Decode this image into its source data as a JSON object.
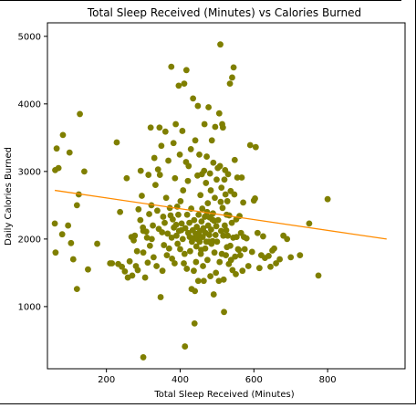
{
  "chart_data": {
    "type": "scatter",
    "title": "Total Sleep Received (Minutes) vs Calories Burned",
    "xlabel": "Total Sleep Received (Minutes)",
    "ylabel": "Daily Calories Burned",
    "xlim": [
      40,
      1010
    ],
    "ylim": [
      80,
      5200
    ],
    "xticks": [
      200,
      400,
      600,
      800
    ],
    "yticks": [
      1000,
      2000,
      3000,
      4000,
      5000
    ],
    "grid": false,
    "colors": {
      "points": "#7f7f00",
      "trend": "#ff8c00",
      "frame": "#000000"
    },
    "trendline": {
      "x": [
        60,
        960
      ],
      "y": [
        2720,
        2000
      ]
    },
    "series": [
      {
        "points": [
          [
            61,
            3020
          ],
          [
            70,
            3050
          ],
          [
            65,
            3340
          ],
          [
            82,
            3540
          ],
          [
            100,
            3280
          ],
          [
            120,
            2500
          ],
          [
            125,
            2660
          ],
          [
            128,
            3850
          ],
          [
            140,
            3000
          ],
          [
            60,
            2230
          ],
          [
            62,
            1800
          ],
          [
            80,
            2070
          ],
          [
            96,
            2200
          ],
          [
            104,
            1940
          ],
          [
            110,
            1700
          ],
          [
            120,
            1260
          ],
          [
            150,
            1550
          ],
          [
            175,
            1930
          ],
          [
            210,
            1640
          ],
          [
            215,
            1640
          ],
          [
            228,
            3430
          ],
          [
            237,
            2400
          ],
          [
            232,
            1630
          ],
          [
            242,
            1590
          ],
          [
            250,
            1520
          ],
          [
            255,
            2900
          ],
          [
            258,
            1430
          ],
          [
            263,
            1670
          ],
          [
            268,
            2030
          ],
          [
            270,
            1460
          ],
          [
            274,
            1980
          ],
          [
            277,
            2050
          ],
          [
            280,
            1600
          ],
          [
            283,
            1820
          ],
          [
            285,
            1540
          ],
          [
            287,
            2440
          ],
          [
            292,
            2280
          ],
          [
            293,
            3010
          ],
          [
            296,
            2640
          ],
          [
            299,
            2170
          ],
          [
            300,
            2120
          ],
          [
            300,
            1800
          ],
          [
            300,
            250
          ],
          [
            305,
            1430
          ],
          [
            308,
            2110
          ],
          [
            310,
            2020
          ],
          [
            312,
            1650
          ],
          [
            314,
            2950
          ],
          [
            316,
            2370
          ],
          [
            318,
            1900
          ],
          [
            320,
            3650
          ],
          [
            322,
            2500
          ],
          [
            323,
            2000
          ],
          [
            326,
            2200
          ],
          [
            328,
            1730
          ],
          [
            330,
            3200
          ],
          [
            333,
            2800
          ],
          [
            336,
            1600
          ],
          [
            338,
            2420
          ],
          [
            340,
            3030
          ],
          [
            342,
            2150
          ],
          [
            344,
            3650
          ],
          [
            345,
            2950
          ],
          [
            347,
            1140
          ],
          [
            349,
            3380
          ],
          [
            351,
            2100
          ],
          [
            352,
            1530
          ],
          [
            354,
            2330
          ],
          [
            356,
            1910
          ],
          [
            358,
            2240
          ],
          [
            360,
            3590
          ],
          [
            362,
            2610
          ],
          [
            364,
            1760
          ],
          [
            366,
            2080
          ],
          [
            368,
            3160
          ],
          [
            370,
            1860
          ],
          [
            372,
            2460
          ],
          [
            374,
            2350
          ],
          [
            376,
            4550
          ],
          [
            377,
            2020
          ],
          [
            378,
            1710
          ],
          [
            380,
            2290
          ],
          [
            382,
            3420
          ],
          [
            383,
            2170
          ],
          [
            385,
            1640
          ],
          [
            386,
            2900
          ],
          [
            388,
            3700
          ],
          [
            389,
            2210
          ],
          [
            390,
            2050
          ],
          [
            392,
            2480
          ],
          [
            393,
            1930
          ],
          [
            395,
            2360
          ],
          [
            396,
            4270
          ],
          [
            397,
            2120
          ],
          [
            399,
            3250
          ],
          [
            400,
            1850
          ],
          [
            401,
            2560
          ],
          [
            403,
            2130
          ],
          [
            404,
            2230
          ],
          [
            406,
            3600
          ],
          [
            407,
            2000
          ],
          [
            408,
            2720
          ],
          [
            410,
            1640
          ],
          [
            411,
            4300
          ],
          [
            412,
            1780
          ],
          [
            413,
            410
          ],
          [
            414,
            2160
          ],
          [
            416,
            3140
          ],
          [
            417,
            4500
          ],
          [
            418,
            1560
          ],
          [
            419,
            2360
          ],
          [
            421,
            2860
          ],
          [
            422,
            2090
          ],
          [
            423,
            3080
          ],
          [
            425,
            2240
          ],
          [
            426,
            2030
          ],
          [
            427,
            1820
          ],
          [
            429,
            3330
          ],
          [
            430,
            2450
          ],
          [
            431,
            1260
          ],
          [
            432,
            1960
          ],
          [
            434,
            2130
          ],
          [
            435,
            4080
          ],
          [
            436,
            2010
          ],
          [
            437,
            1530
          ],
          [
            438,
            2280
          ],
          [
            439,
            750
          ],
          [
            440,
            1230
          ],
          [
            441,
            3460
          ],
          [
            442,
            2080
          ],
          [
            443,
            1660
          ],
          [
            444,
            1890
          ],
          [
            445,
            2180
          ],
          [
            446,
            2000
          ],
          [
            447,
            2940
          ],
          [
            448,
            3970
          ],
          [
            449,
            1380
          ],
          [
            450,
            2360
          ],
          [
            451,
            2060
          ],
          [
            452,
            3250
          ],
          [
            453,
            1960
          ],
          [
            454,
            2120
          ],
          [
            455,
            2650
          ],
          [
            456,
            1780
          ],
          [
            457,
            1840
          ],
          [
            458,
            2260
          ],
          [
            459,
            2960
          ],
          [
            460,
            2450
          ],
          [
            461,
            2030
          ],
          [
            462,
            1600
          ],
          [
            463,
            2160
          ],
          [
            464,
            1380
          ],
          [
            465,
            3010
          ],
          [
            466,
            3700
          ],
          [
            467,
            2330
          ],
          [
            468,
            1860
          ],
          [
            469,
            2090
          ],
          [
            470,
            2830
          ],
          [
            471,
            1960
          ],
          [
            472,
            3220
          ],
          [
            473,
            2400
          ],
          [
            474,
            1690
          ],
          [
            475,
            2530
          ],
          [
            476,
            2200
          ],
          [
            477,
            3950
          ],
          [
            478,
            1960
          ],
          [
            479,
            2060
          ],
          [
            480,
            2320
          ],
          [
            481,
            2970
          ],
          [
            482,
            1450
          ],
          [
            483,
            2720
          ],
          [
            484,
            2140
          ],
          [
            485,
            1930
          ],
          [
            486,
            3460
          ],
          [
            487,
            2290
          ],
          [
            488,
            1970
          ],
          [
            489,
            2380
          ],
          [
            490,
            3130
          ],
          [
            491,
            1180
          ],
          [
            492,
            2270
          ],
          [
            493,
            1800
          ],
          [
            494,
            2610
          ],
          [
            495,
            3660
          ],
          [
            496,
            2060
          ],
          [
            497,
            1500
          ],
          [
            498,
            2190
          ],
          [
            499,
            2880
          ],
          [
            500,
            1960
          ],
          [
            502,
            3050
          ],
          [
            503,
            2280
          ],
          [
            505,
            1380
          ],
          [
            506,
            3860
          ],
          [
            507,
            1660
          ],
          [
            508,
            3080
          ],
          [
            509,
            4880
          ],
          [
            510,
            2550
          ],
          [
            511,
            2120
          ],
          [
            512,
            2760
          ],
          [
            513,
            1780
          ],
          [
            514,
            3700
          ],
          [
            515,
            2460
          ],
          [
            516,
            3650
          ],
          [
            517,
            2050
          ],
          [
            518,
            1400
          ],
          [
            519,
            920
          ],
          [
            520,
            2880
          ],
          [
            521,
            2200
          ],
          [
            522,
            3020
          ],
          [
            523,
            2660
          ],
          [
            524,
            1760
          ],
          [
            525,
            2130
          ],
          [
            526,
            2360
          ],
          [
            527,
            1880
          ],
          [
            528,
            2560
          ],
          [
            529,
            2050
          ],
          [
            530,
            2960
          ],
          [
            532,
            1630
          ],
          [
            533,
            2350
          ],
          [
            535,
            4300
          ],
          [
            536,
            1900
          ],
          [
            537,
            2710
          ],
          [
            538,
            1690
          ],
          [
            540,
            2240
          ],
          [
            541,
            4390
          ],
          [
            542,
            1540
          ],
          [
            544,
            2020
          ],
          [
            545,
            4540
          ],
          [
            547,
            2660
          ],
          [
            548,
            3170
          ],
          [
            549,
            1740
          ],
          [
            551,
            1480
          ],
          [
            552,
            2290
          ],
          [
            553,
            2030
          ],
          [
            555,
            2910
          ],
          [
            557,
            1850
          ],
          [
            559,
            1840
          ],
          [
            561,
            2340
          ],
          [
            563,
            1760
          ],
          [
            565,
            2090
          ],
          [
            567,
            2910
          ],
          [
            569,
            1530
          ],
          [
            571,
            2540
          ],
          [
            573,
            2030
          ],
          [
            575,
            1850
          ],
          [
            580,
            2010
          ],
          [
            585,
            1600
          ],
          [
            590,
            3390
          ],
          [
            595,
            1810
          ],
          [
            600,
            2570
          ],
          [
            603,
            2600
          ],
          [
            605,
            3360
          ],
          [
            610,
            2090
          ],
          [
            615,
            1570
          ],
          [
            620,
            1760
          ],
          [
            625,
            2040
          ],
          [
            630,
            1720
          ],
          [
            640,
            1750
          ],
          [
            645,
            1590
          ],
          [
            650,
            1830
          ],
          [
            655,
            1860
          ],
          [
            660,
            1640
          ],
          [
            670,
            1700
          ],
          [
            680,
            2050
          ],
          [
            690,
            2000
          ],
          [
            700,
            1730
          ],
          [
            725,
            1760
          ],
          [
            750,
            2230
          ],
          [
            775,
            1460
          ],
          [
            800,
            2590
          ]
        ]
      }
    ]
  }
}
